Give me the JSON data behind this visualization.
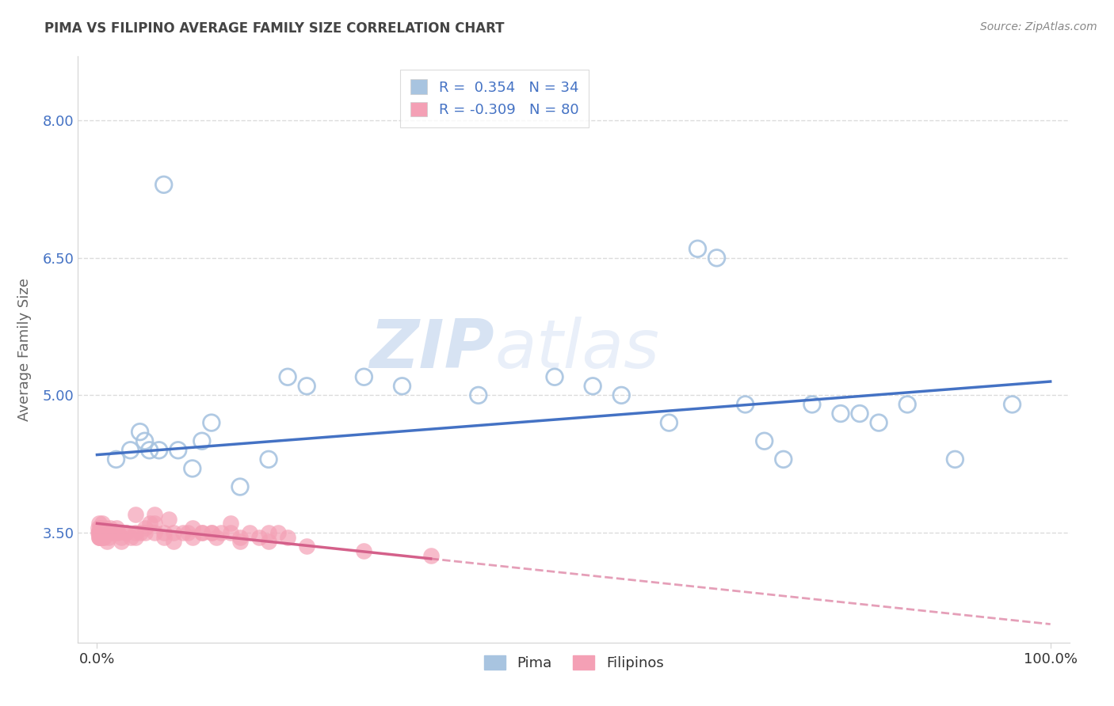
{
  "title": "PIMA VS FILIPINO AVERAGE FAMILY SIZE CORRELATION CHART",
  "source": "Source: ZipAtlas.com",
  "ylabel": "Average Family Size",
  "xlim": [
    -2,
    102
  ],
  "ylim": [
    2.3,
    8.7
  ],
  "yticks": [
    3.5,
    5.0,
    6.5,
    8.0
  ],
  "xtick_labels": [
    "0.0%",
    "100.0%"
  ],
  "legend_r_pima": "0.354",
  "legend_n_pima": "34",
  "legend_r_fil": "-0.309",
  "legend_n_fil": "80",
  "pima_color": "#a8c4e0",
  "fil_color": "#f4a0b5",
  "pima_line_color": "#4472c4",
  "fil_line_color": "#d4608a",
  "watermark_zip": "ZIP",
  "watermark_atlas": "atlas",
  "pima_x": [
    2.0,
    3.5,
    4.5,
    5.0,
    5.5,
    6.5,
    7.0,
    8.5,
    10.0,
    11.0,
    12.0,
    15.0,
    18.0,
    20.0,
    22.0,
    28.0,
    32.0,
    40.0,
    48.0,
    52.0,
    55.0,
    60.0,
    63.0,
    65.0,
    68.0,
    70.0,
    72.0,
    75.0,
    78.0,
    80.0,
    82.0,
    85.0,
    90.0,
    96.0
  ],
  "pima_y": [
    4.3,
    4.4,
    4.6,
    4.5,
    4.4,
    4.4,
    7.3,
    4.4,
    4.2,
    4.5,
    4.7,
    4.0,
    4.3,
    5.2,
    5.1,
    5.2,
    5.1,
    5.0,
    5.2,
    5.1,
    5.0,
    4.7,
    6.6,
    6.5,
    4.9,
    4.5,
    4.3,
    4.9,
    4.8,
    4.8,
    4.7,
    4.9,
    4.3,
    4.9
  ],
  "fil_x_cluster": [
    0.1,
    0.15,
    0.2,
    0.2,
    0.2,
    0.25,
    0.25,
    0.3,
    0.3,
    0.3,
    0.35,
    0.35,
    0.4,
    0.4,
    0.45,
    0.5,
    0.5,
    0.55,
    0.6,
    0.6,
    0.65,
    0.7,
    0.8,
    0.9,
    1.0,
    1.1,
    1.2,
    1.3,
    1.4,
    1.5,
    1.6,
    1.8,
    2.0,
    2.2,
    2.5,
    3.0,
    3.5,
    4.0,
    4.5,
    5.0,
    5.5,
    6.0,
    7.0,
    8.0,
    9.0,
    10.0,
    11.0,
    12.0,
    13.0,
    14.0,
    1.0,
    1.5,
    2.0,
    2.5,
    3.0,
    4.0,
    5.0,
    6.0,
    7.0,
    8.0,
    9.5,
    11.0,
    12.5,
    14.0,
    15.0,
    16.0,
    17.0,
    18.0,
    19.0,
    20.0,
    4.0,
    6.0,
    7.5,
    10.0,
    12.0,
    15.0,
    18.0,
    22.0,
    28.0,
    35.0
  ],
  "fil_y_cluster": [
    3.5,
    3.55,
    3.45,
    3.5,
    3.6,
    3.5,
    3.45,
    3.55,
    3.45,
    3.5,
    3.5,
    3.45,
    3.5,
    3.55,
    3.5,
    3.6,
    3.5,
    3.5,
    3.5,
    3.45,
    3.5,
    3.45,
    3.5,
    3.55,
    3.5,
    3.5,
    3.45,
    3.5,
    3.55,
    3.5,
    3.5,
    3.5,
    3.5,
    3.5,
    3.45,
    3.5,
    3.45,
    3.5,
    3.5,
    3.55,
    3.6,
    3.7,
    3.5,
    3.5,
    3.5,
    3.45,
    3.5,
    3.5,
    3.5,
    3.6,
    3.4,
    3.5,
    3.55,
    3.4,
    3.5,
    3.45,
    3.5,
    3.5,
    3.45,
    3.4,
    3.5,
    3.5,
    3.45,
    3.5,
    3.4,
    3.5,
    3.45,
    3.5,
    3.5,
    3.45,
    3.7,
    3.6,
    3.65,
    3.55,
    3.5,
    3.45,
    3.4,
    3.35,
    3.3,
    3.25
  ],
  "pima_line_x0": 0,
  "pima_line_y0": 4.35,
  "pima_line_x1": 100,
  "pima_line_y1": 5.15,
  "fil_line_x0": 0,
  "fil_line_y0": 3.6,
  "fil_line_x1": 100,
  "fil_line_y1": 2.5,
  "fil_solid_end": 35
}
